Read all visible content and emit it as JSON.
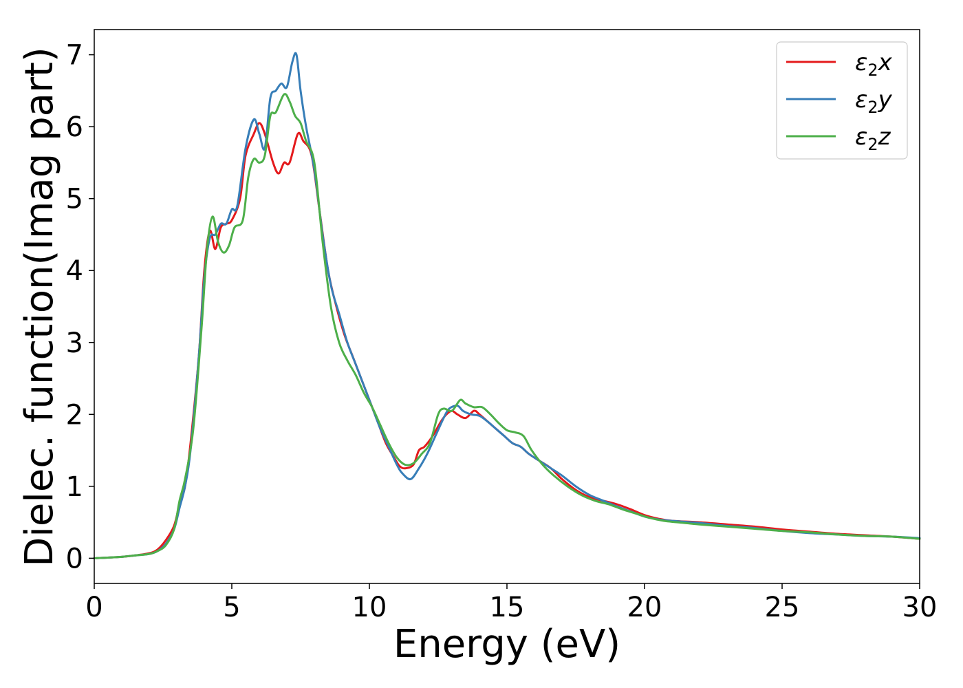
{
  "chart_data": {
    "type": "line",
    "title": "",
    "xlabel": "Energy (eV)",
    "ylabel": "Dielec. function(Imag part)",
    "xlim": [
      0,
      30
    ],
    "ylim": [
      -0.35,
      7.35
    ],
    "xticks": [
      0,
      5,
      10,
      15,
      20,
      25,
      30
    ],
    "yticks": [
      0,
      1,
      2,
      3,
      4,
      5,
      6,
      7
    ],
    "grid": false,
    "legend_position": "top-right",
    "series": [
      {
        "name": "ε2x",
        "legend_main": "ε",
        "legend_sub": "2",
        "legend_suffix": "x",
        "color": "#e41a1c",
        "points": [
          [
            0,
            0
          ],
          [
            1,
            0.02
          ],
          [
            1.5,
            0.04
          ],
          [
            2,
            0.07
          ],
          [
            2.3,
            0.12
          ],
          [
            2.6,
            0.25
          ],
          [
            2.9,
            0.45
          ],
          [
            3.1,
            0.75
          ],
          [
            3.3,
            1.0
          ],
          [
            3.5,
            1.6
          ],
          [
            3.8,
            2.8
          ],
          [
            4.0,
            4.0
          ],
          [
            4.2,
            4.55
          ],
          [
            4.4,
            4.3
          ],
          [
            4.6,
            4.6
          ],
          [
            4.8,
            4.65
          ],
          [
            5.0,
            4.7
          ],
          [
            5.3,
            5.0
          ],
          [
            5.5,
            5.6
          ],
          [
            5.8,
            5.9
          ],
          [
            6.0,
            6.05
          ],
          [
            6.2,
            5.9
          ],
          [
            6.5,
            5.5
          ],
          [
            6.7,
            5.35
          ],
          [
            6.9,
            5.5
          ],
          [
            7.1,
            5.5
          ],
          [
            7.4,
            5.9
          ],
          [
            7.6,
            5.8
          ],
          [
            7.9,
            5.6
          ],
          [
            8.2,
            4.8
          ],
          [
            8.5,
            4.0
          ],
          [
            8.8,
            3.5
          ],
          [
            9.1,
            3.1
          ],
          [
            9.4,
            2.8
          ],
          [
            9.7,
            2.5
          ],
          [
            10.0,
            2.2
          ],
          [
            10.3,
            1.9
          ],
          [
            10.6,
            1.6
          ],
          [
            10.9,
            1.4
          ],
          [
            11.1,
            1.28
          ],
          [
            11.3,
            1.25
          ],
          [
            11.6,
            1.3
          ],
          [
            11.8,
            1.5
          ],
          [
            12.0,
            1.55
          ],
          [
            12.3,
            1.7
          ],
          [
            12.6,
            1.9
          ],
          [
            12.8,
            2.0
          ],
          [
            13.0,
            2.05
          ],
          [
            13.2,
            2.0
          ],
          [
            13.5,
            1.95
          ],
          [
            13.8,
            2.05
          ],
          [
            14.0,
            2.0
          ],
          [
            14.3,
            1.9
          ],
          [
            14.6,
            1.8
          ],
          [
            14.9,
            1.7
          ],
          [
            15.2,
            1.6
          ],
          [
            15.5,
            1.55
          ],
          [
            15.8,
            1.45
          ],
          [
            16.2,
            1.35
          ],
          [
            16.6,
            1.25
          ],
          [
            17.0,
            1.1
          ],
          [
            17.5,
            0.95
          ],
          [
            18.0,
            0.85
          ],
          [
            18.5,
            0.8
          ],
          [
            19.0,
            0.75
          ],
          [
            19.5,
            0.68
          ],
          [
            20.0,
            0.6
          ],
          [
            20.5,
            0.55
          ],
          [
            21.0,
            0.52
          ],
          [
            22.0,
            0.5
          ],
          [
            23.0,
            0.47
          ],
          [
            24.0,
            0.44
          ],
          [
            25.0,
            0.4
          ],
          [
            26.0,
            0.37
          ],
          [
            27.0,
            0.34
          ],
          [
            28.0,
            0.32
          ],
          [
            29.0,
            0.3
          ],
          [
            30.0,
            0.27
          ]
        ]
      },
      {
        "name": "ε2y",
        "legend_main": "ε",
        "legend_sub": "2",
        "legend_suffix": "y",
        "color": "#377eb8",
        "points": [
          [
            0,
            0
          ],
          [
            1,
            0.02
          ],
          [
            1.5,
            0.04
          ],
          [
            2,
            0.06
          ],
          [
            2.3,
            0.1
          ],
          [
            2.6,
            0.2
          ],
          [
            2.9,
            0.4
          ],
          [
            3.1,
            0.7
          ],
          [
            3.3,
            1.0
          ],
          [
            3.5,
            1.5
          ],
          [
            3.8,
            2.8
          ],
          [
            4.0,
            3.9
          ],
          [
            4.2,
            4.45
          ],
          [
            4.4,
            4.5
          ],
          [
            4.6,
            4.65
          ],
          [
            4.8,
            4.65
          ],
          [
            5.0,
            4.85
          ],
          [
            5.2,
            4.9
          ],
          [
            5.5,
            5.7
          ],
          [
            5.8,
            6.1
          ],
          [
            6.0,
            5.9
          ],
          [
            6.2,
            5.7
          ],
          [
            6.4,
            6.4
          ],
          [
            6.6,
            6.5
          ],
          [
            6.8,
            6.6
          ],
          [
            7.0,
            6.55
          ],
          [
            7.2,
            6.9
          ],
          [
            7.35,
            7.0
          ],
          [
            7.5,
            6.5
          ],
          [
            7.7,
            6.0
          ],
          [
            8.0,
            5.4
          ],
          [
            8.3,
            4.5
          ],
          [
            8.6,
            3.8
          ],
          [
            8.9,
            3.4
          ],
          [
            9.2,
            3.0
          ],
          [
            9.5,
            2.7
          ],
          [
            9.8,
            2.4
          ],
          [
            10.1,
            2.1
          ],
          [
            10.4,
            1.8
          ],
          [
            10.7,
            1.55
          ],
          [
            11.0,
            1.3
          ],
          [
            11.2,
            1.18
          ],
          [
            11.5,
            1.1
          ],
          [
            11.8,
            1.25
          ],
          [
            12.1,
            1.45
          ],
          [
            12.4,
            1.7
          ],
          [
            12.7,
            1.95
          ],
          [
            12.9,
            2.08
          ],
          [
            13.2,
            2.12
          ],
          [
            13.4,
            2.05
          ],
          [
            13.7,
            2.0
          ],
          [
            14.0,
            1.98
          ],
          [
            14.3,
            1.9
          ],
          [
            14.6,
            1.8
          ],
          [
            14.9,
            1.7
          ],
          [
            15.2,
            1.6
          ],
          [
            15.5,
            1.55
          ],
          [
            15.8,
            1.45
          ],
          [
            16.2,
            1.35
          ],
          [
            16.6,
            1.25
          ],
          [
            17.0,
            1.15
          ],
          [
            17.5,
            1.0
          ],
          [
            18.0,
            0.88
          ],
          [
            18.5,
            0.8
          ],
          [
            19.0,
            0.72
          ],
          [
            19.5,
            0.65
          ],
          [
            20.0,
            0.58
          ],
          [
            20.5,
            0.54
          ],
          [
            21.0,
            0.52
          ],
          [
            22.0,
            0.49
          ],
          [
            23.0,
            0.45
          ],
          [
            24.0,
            0.42
          ],
          [
            25.0,
            0.38
          ],
          [
            26.0,
            0.35
          ],
          [
            27.0,
            0.33
          ],
          [
            28.0,
            0.31
          ],
          [
            29.0,
            0.3
          ],
          [
            30.0,
            0.28
          ]
        ]
      },
      {
        "name": "ε2z",
        "legend_main": "ε",
        "legend_sub": "2",
        "legend_suffix": "z",
        "color": "#4daf4a",
        "points": [
          [
            0,
            0
          ],
          [
            1,
            0.02
          ],
          [
            1.5,
            0.04
          ],
          [
            2,
            0.06
          ],
          [
            2.3,
            0.1
          ],
          [
            2.6,
            0.18
          ],
          [
            2.9,
            0.4
          ],
          [
            3.1,
            0.8
          ],
          [
            3.3,
            1.1
          ],
          [
            3.6,
            1.8
          ],
          [
            3.9,
            3.2
          ],
          [
            4.1,
            4.3
          ],
          [
            4.3,
            4.75
          ],
          [
            4.5,
            4.4
          ],
          [
            4.7,
            4.25
          ],
          [
            4.9,
            4.35
          ],
          [
            5.1,
            4.6
          ],
          [
            5.4,
            4.7
          ],
          [
            5.6,
            5.3
          ],
          [
            5.8,
            5.55
          ],
          [
            6.0,
            5.5
          ],
          [
            6.2,
            5.6
          ],
          [
            6.4,
            6.15
          ],
          [
            6.6,
            6.2
          ],
          [
            6.9,
            6.45
          ],
          [
            7.1,
            6.35
          ],
          [
            7.3,
            6.15
          ],
          [
            7.5,
            6.05
          ],
          [
            7.7,
            5.8
          ],
          [
            8.0,
            5.5
          ],
          [
            8.3,
            4.4
          ],
          [
            8.6,
            3.5
          ],
          [
            8.9,
            3.0
          ],
          [
            9.2,
            2.75
          ],
          [
            9.5,
            2.55
          ],
          [
            9.8,
            2.3
          ],
          [
            10.1,
            2.1
          ],
          [
            10.4,
            1.85
          ],
          [
            10.7,
            1.6
          ],
          [
            11.0,
            1.4
          ],
          [
            11.3,
            1.3
          ],
          [
            11.6,
            1.32
          ],
          [
            11.9,
            1.45
          ],
          [
            12.2,
            1.6
          ],
          [
            12.5,
            2.0
          ],
          [
            12.7,
            2.08
          ],
          [
            13.0,
            2.05
          ],
          [
            13.3,
            2.2
          ],
          [
            13.5,
            2.15
          ],
          [
            13.8,
            2.1
          ],
          [
            14.1,
            2.1
          ],
          [
            14.4,
            2.0
          ],
          [
            14.7,
            1.88
          ],
          [
            15.0,
            1.78
          ],
          [
            15.3,
            1.75
          ],
          [
            15.6,
            1.7
          ],
          [
            15.9,
            1.5
          ],
          [
            16.3,
            1.3
          ],
          [
            16.7,
            1.15
          ],
          [
            17.2,
            1.0
          ],
          [
            17.7,
            0.88
          ],
          [
            18.2,
            0.8
          ],
          [
            18.7,
            0.75
          ],
          [
            19.2,
            0.68
          ],
          [
            19.7,
            0.62
          ],
          [
            20.2,
            0.56
          ],
          [
            20.7,
            0.52
          ],
          [
            21.2,
            0.5
          ],
          [
            22.0,
            0.47
          ],
          [
            23.0,
            0.44
          ],
          [
            24.0,
            0.41
          ],
          [
            25.0,
            0.38
          ],
          [
            26.0,
            0.36
          ],
          [
            27.0,
            0.33
          ],
          [
            28.0,
            0.31
          ],
          [
            29.0,
            0.3
          ],
          [
            30.0,
            0.27
          ]
        ]
      }
    ]
  }
}
